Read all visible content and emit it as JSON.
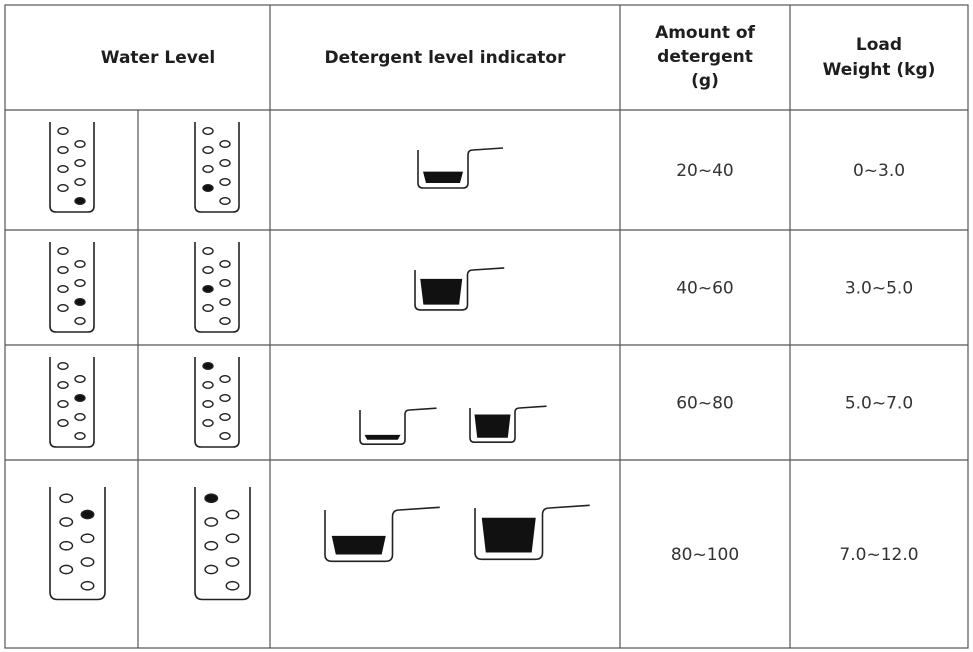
{
  "table": {
    "header": [
      "Water Level",
      "Detergent level indicator",
      [
        "Amount of",
        "detergent",
        "(g)"
      ],
      [
        "Load",
        "Weight (kg)"
      ]
    ],
    "rows": [
      [
        "20~40",
        "0~3.0"
      ],
      [
        "40~60",
        "3.0~5.0"
      ],
      [
        "60~80",
        "5.0~7.0"
      ],
      [
        "80~100",
        "7.0~12.0"
      ]
    ]
  }
}
